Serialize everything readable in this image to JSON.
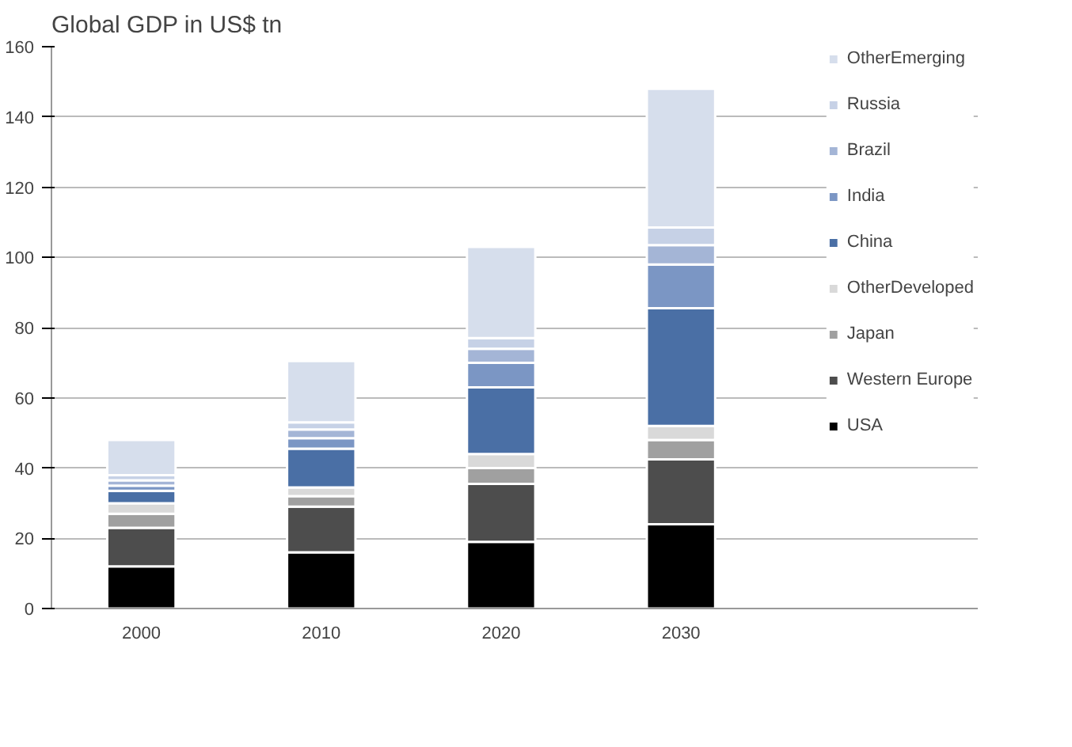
{
  "chart_data": {
    "type": "bar",
    "title": "Global GDP in US$ tn",
    "categories": [
      "2000",
      "2010",
      "2020",
      "2030"
    ],
    "stacked": true,
    "series": [
      {
        "name": "USA",
        "color": "#000000",
        "values": [
          12,
          16,
          19,
          24
        ]
      },
      {
        "name": "Western Europe",
        "color": "#4d4d4d",
        "values": [
          11,
          13,
          16.5,
          18.5
        ]
      },
      {
        "name": "Japan",
        "color": "#a0a0a0",
        "values": [
          4,
          3,
          4.5,
          5.5
        ]
      },
      {
        "name": "OtherDeveloped",
        "color": "#d9d9d9",
        "values": [
          3,
          2.5,
          4,
          4
        ]
      },
      {
        "name": "China",
        "color": "#4a6fa5",
        "values": [
          3.5,
          11,
          19,
          33.5
        ]
      },
      {
        "name": "India",
        "color": "#7b96c4",
        "values": [
          1.5,
          3,
          7,
          12.5
        ]
      },
      {
        "name": "Brazil",
        "color": "#a4b5d6",
        "values": [
          1.5,
          2.5,
          4,
          5.5
        ]
      },
      {
        "name": "Russia",
        "color": "#c6d1e6",
        "values": [
          1.5,
          2,
          3,
          5
        ]
      },
      {
        "name": "OtherEmerging",
        "color": "#d6deec",
        "values": [
          10,
          17.5,
          26,
          39.5
        ]
      }
    ],
    "ylim": [
      0,
      160
    ],
    "yticks": [
      0,
      20,
      40,
      60,
      80,
      100,
      120,
      140,
      160
    ],
    "grid": "y",
    "legend": "right"
  }
}
